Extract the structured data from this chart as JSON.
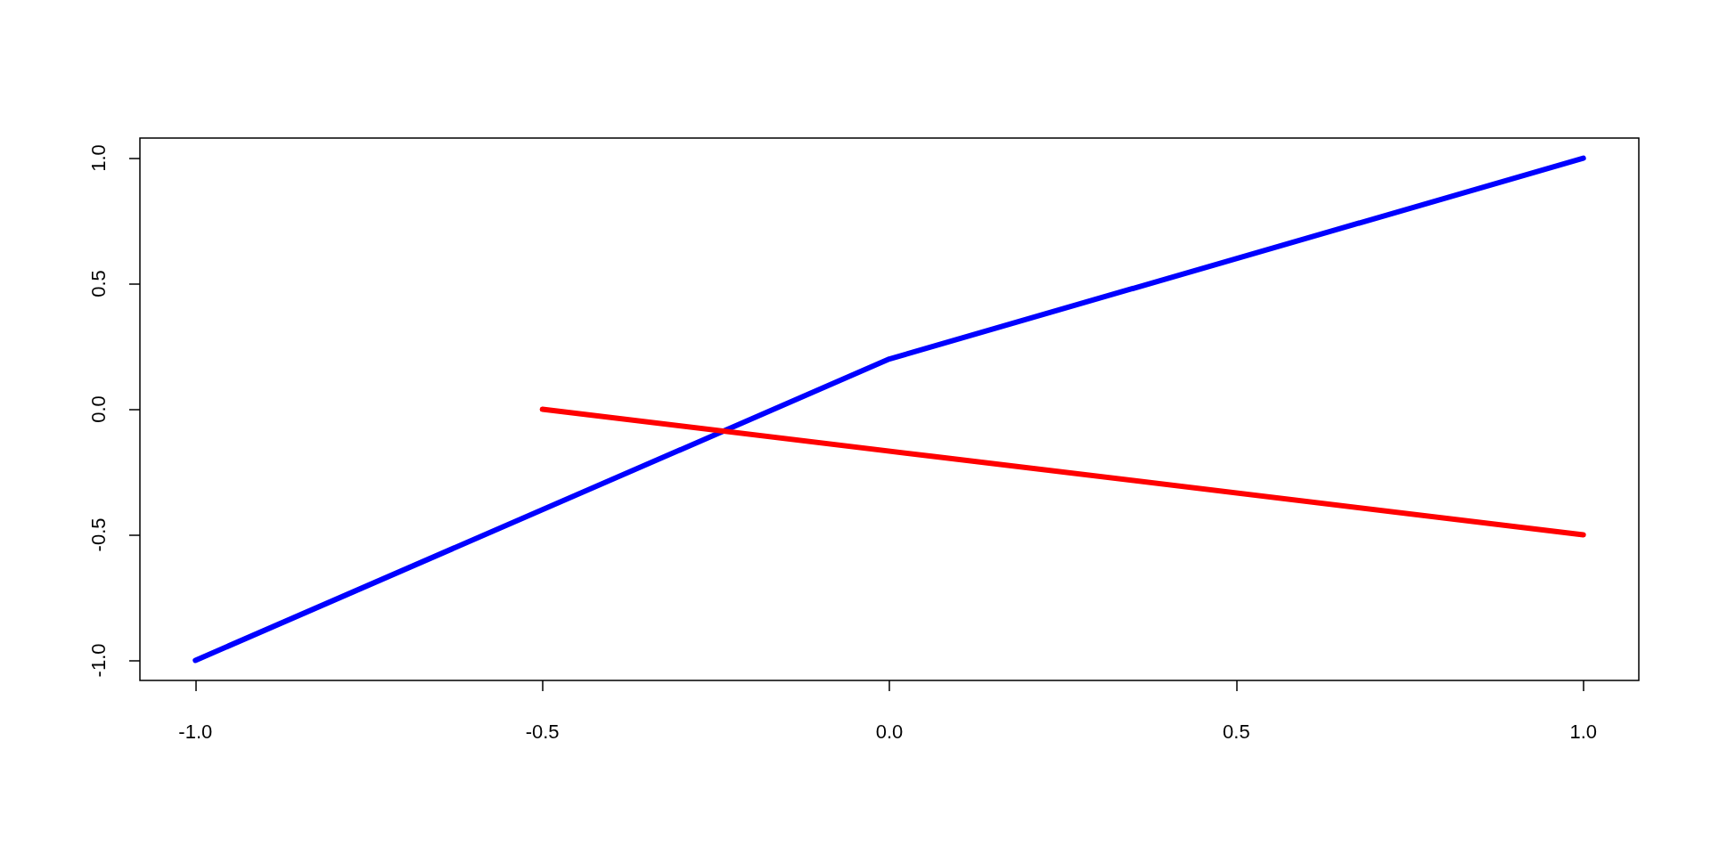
{
  "chart_data": {
    "type": "line",
    "series": [
      {
        "color": "#0000ff",
        "x": [
          -1,
          0,
          1
        ],
        "values": [
          -1,
          0.2,
          1
        ]
      },
      {
        "color": "#ff0000",
        "x": [
          -0.5,
          1
        ],
        "values": [
          0,
          -0.5
        ]
      }
    ],
    "xlim": [
      -1.08,
      1.08
    ],
    "ylim": [
      -1.08,
      1.08
    ],
    "xticks": [
      {
        "value": -1,
        "label": "-1.0"
      },
      -0.5,
      {
        "value": 0,
        "label": "0.0"
      },
      0.5,
      {
        "value": 1,
        "label": "1.0"
      }
    ],
    "yticks": [
      {
        "value": -1,
        "label": "-1.0"
      },
      -0.5,
      {
        "value": 0,
        "label": "0.0"
      },
      0.5,
      {
        "value": 1,
        "label": "1.0"
      }
    ],
    "marker": "none",
    "line_style": "solid"
  }
}
